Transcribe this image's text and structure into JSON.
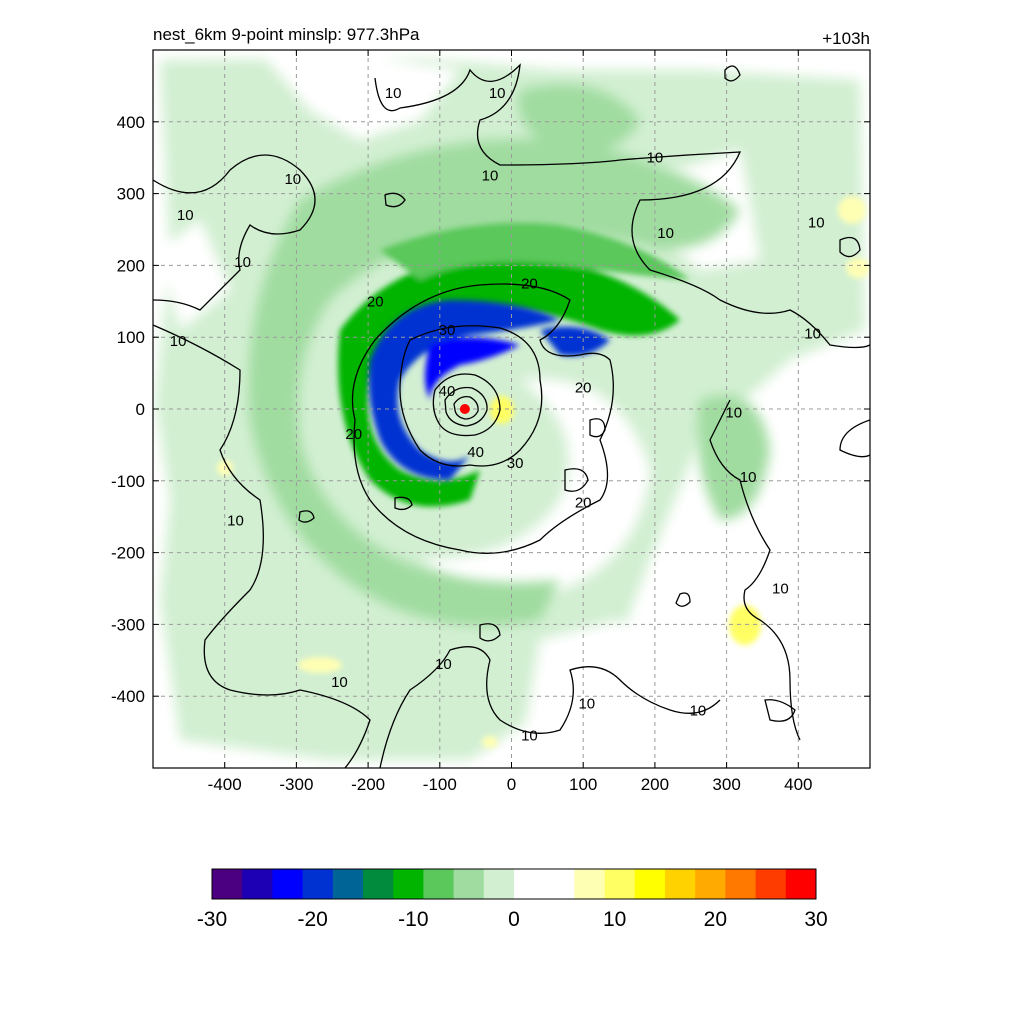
{
  "chart_data": {
    "type": "heatmap",
    "title_left": "nest_6km  9-point minslp: 977.3hPa",
    "title_right": "+103h",
    "xlabel": "",
    "ylabel": "",
    "xlim": [
      -500,
      500
    ],
    "ylim": [
      -500,
      500
    ],
    "x_ticks": [
      -400,
      -300,
      -200,
      -100,
      0,
      100,
      200,
      300,
      400
    ],
    "y_ticks": [
      400,
      300,
      200,
      100,
      0,
      -100,
      -200,
      -300,
      -400
    ],
    "x_tick_labels": [
      "-400",
      "-300",
      "-200",
      "-100",
      "0",
      "100",
      "200",
      "300",
      "400"
    ],
    "y_tick_labels": [
      "400",
      "300",
      "200",
      "100",
      "0",
      "-100",
      "-200",
      "-300",
      "-400"
    ],
    "grid": true,
    "colorbar": {
      "range": [
        -30,
        30
      ],
      "tick_values": [
        -30,
        -20,
        -10,
        0,
        10,
        20,
        30
      ],
      "tick_labels": [
        "-30",
        "-20",
        "-10",
        "0",
        "10",
        "20",
        "30"
      ],
      "colors": [
        "#4b0082",
        "#1e00b4",
        "#0000ff",
        "#0032d2",
        "#006496",
        "#008c3c",
        "#00b400",
        "#5ac85a",
        "#a0dca0",
        "#d2efd2",
        "#ffffff",
        "#ffffff",
        "#ffffb4",
        "#ffff64",
        "#ffff00",
        "#ffd200",
        "#ffaa00",
        "#ff7800",
        "#ff3c00",
        "#ff0000"
      ]
    },
    "center_marker": {
      "x": -65,
      "y": 0,
      "color": "#ff0000"
    },
    "contour_levels": [
      10,
      20,
      30,
      40
    ],
    "contour_labels": [
      {
        "text": "10",
        "x": -165,
        "y": 440
      },
      {
        "text": "10",
        "x": -20,
        "y": 440
      },
      {
        "text": "10",
        "x": -30,
        "y": 325
      },
      {
        "text": "10",
        "x": -305,
        "y": 320
      },
      {
        "text": "10",
        "x": -455,
        "y": 270
      },
      {
        "text": "10",
        "x": -375,
        "y": 205
      },
      {
        "text": "10",
        "x": -465,
        "y": 95
      },
      {
        "text": "10",
        "x": 200,
        "y": 350
      },
      {
        "text": "10",
        "x": 215,
        "y": 245
      },
      {
        "text": "10",
        "x": 425,
        "y": 260
      },
      {
        "text": "10",
        "x": 420,
        "y": 105
      },
      {
        "text": "10",
        "x": 310,
        "y": -5
      },
      {
        "text": "10",
        "x": 330,
        "y": -95
      },
      {
        "text": "10",
        "x": 375,
        "y": -250
      },
      {
        "text": "10",
        "x": -385,
        "y": -155
      },
      {
        "text": "10",
        "x": -240,
        "y": -380
      },
      {
        "text": "10",
        "x": -95,
        "y": -355
      },
      {
        "text": "10",
        "x": 105,
        "y": -410
      },
      {
        "text": "10",
        "x": 25,
        "y": -455
      },
      {
        "text": "10",
        "x": 260,
        "y": -420
      },
      {
        "text": "20",
        "x": -190,
        "y": 150
      },
      {
        "text": "20",
        "x": 25,
        "y": 175
      },
      {
        "text": "20",
        "x": 100,
        "y": 30
      },
      {
        "text": "20",
        "x": -220,
        "y": -35
      },
      {
        "text": "20",
        "x": 100,
        "y": -130
      },
      {
        "text": "30",
        "x": -90,
        "y": 110
      },
      {
        "text": "30",
        "x": 5,
        "y": -75
      },
      {
        "text": "40",
        "x": -90,
        "y": 25
      },
      {
        "text": "40",
        "x": -50,
        "y": -60
      }
    ]
  }
}
